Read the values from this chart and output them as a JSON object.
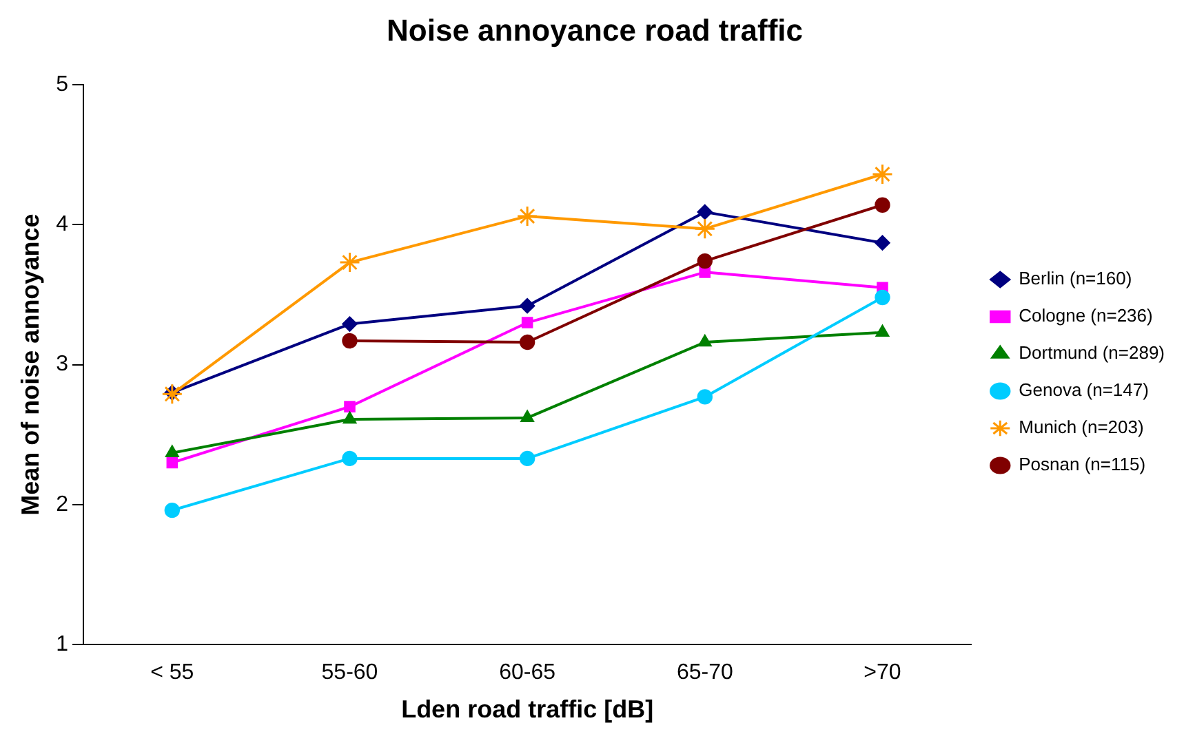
{
  "chart_data": {
    "type": "line",
    "title": "Noise annoyance road traffic",
    "xlabel": "Lden road traffic [dB]",
    "ylabel": "Mean of noise annoyance",
    "categories": [
      "< 55",
      "55-60",
      "60-65",
      "65-70",
      ">70"
    ],
    "ylim": [
      1,
      5
    ],
    "yticks": [
      1,
      2,
      3,
      4,
      5
    ],
    "grid": false,
    "legend": "right",
    "series": [
      {
        "name": "Berlin (n=160)",
        "color": "#000080",
        "marker": "diamond",
        "values": [
          2.8,
          3.29,
          3.42,
          4.09,
          3.87
        ]
      },
      {
        "name": "Cologne (n=236)",
        "color": "#ff00ff",
        "marker": "square",
        "values": [
          2.3,
          2.7,
          3.3,
          3.66,
          3.55
        ]
      },
      {
        "name": "Dortmund (n=289)",
        "color": "#008000",
        "marker": "triangle",
        "values": [
          2.37,
          2.61,
          2.62,
          3.16,
          3.23
        ]
      },
      {
        "name": "Genova (n=147)",
        "color": "#00ccff",
        "marker": "circle",
        "values": [
          1.96,
          2.33,
          2.33,
          2.77,
          3.48
        ]
      },
      {
        "name": "Munich (n=203)",
        "color": "#ff9900",
        "marker": "cross",
        "values": [
          2.79,
          3.73,
          4.06,
          3.97,
          4.36
        ]
      },
      {
        "name": "Posnan (n=115)",
        "color": "#800000",
        "marker": "circle",
        "values": [
          null,
          3.17,
          3.16,
          3.74,
          4.14
        ]
      }
    ]
  }
}
